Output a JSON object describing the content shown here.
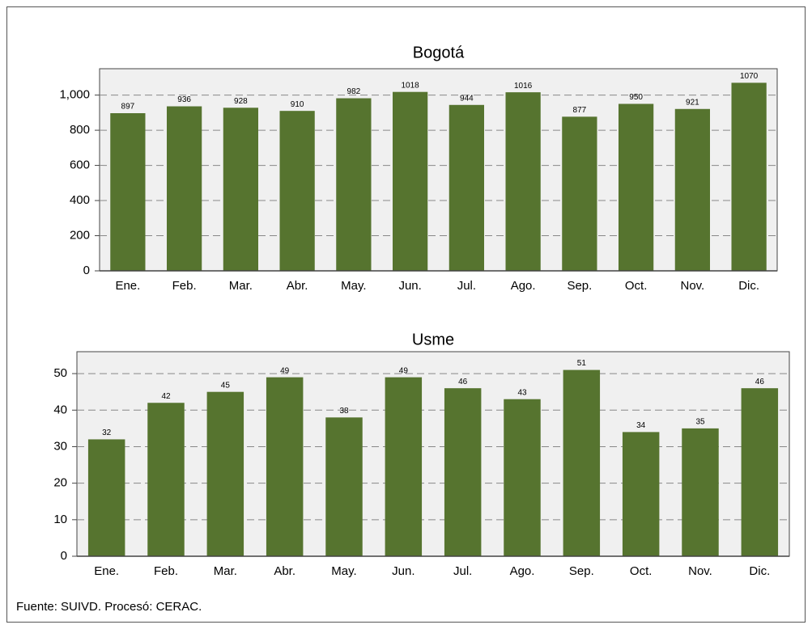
{
  "chart_data": [
    {
      "type": "bar",
      "title": "Bogotá",
      "categories": [
        "Ene.",
        "Feb.",
        "Mar.",
        "Abr.",
        "May.",
        "Jun.",
        "Jul.",
        "Ago.",
        "Sep.",
        "Oct.",
        "Nov.",
        "Dic."
      ],
      "values": [
        897,
        936,
        928,
        910,
        982,
        1018,
        944,
        1016,
        877,
        950,
        921,
        1070
      ],
      "color": "#56742f",
      "ylim": [
        0,
        1150
      ],
      "yticks": [
        0,
        200,
        400,
        600,
        800,
        {
          "value": 1000,
          "label": "1,000"
        }
      ],
      "grid": true
    },
    {
      "type": "bar",
      "title": "Usme",
      "categories": [
        "Ene.",
        "Feb.",
        "Mar.",
        "Abr.",
        "May.",
        "Jun.",
        "Jul.",
        "Ago.",
        "Sep.",
        "Oct.",
        "Nov.",
        "Dic."
      ],
      "values": [
        32,
        42,
        45,
        49,
        38,
        49,
        46,
        43,
        51,
        34,
        35,
        46
      ],
      "color": "#56742f",
      "ylim": [
        0,
        56
      ],
      "yticks": [
        0,
        10,
        20,
        30,
        40,
        50
      ],
      "grid": true
    }
  ],
  "source": "Fuente: SUIVD. Procesó: CERAC."
}
